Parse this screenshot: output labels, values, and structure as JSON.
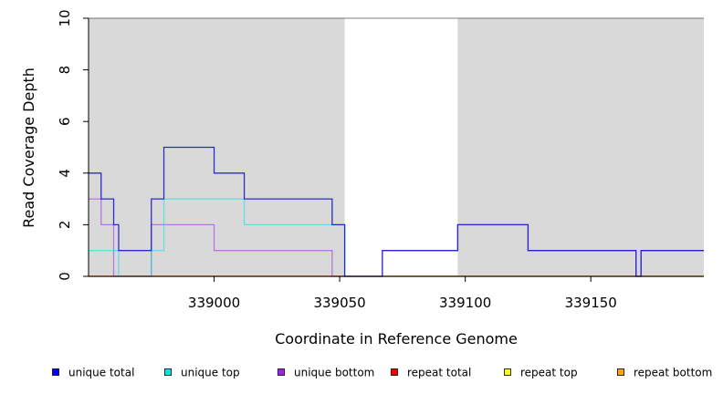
{
  "chart_data": {
    "type": "line",
    "xlabel": "Coordinate in Reference Genome",
    "ylabel": "Read Coverage Depth",
    "xlim": [
      338950,
      339195
    ],
    "ylim": [
      0,
      10
    ],
    "x_ticks": [
      339000,
      339050,
      339100,
      339150
    ],
    "x_tick_labels": [
      "339000",
      "339050",
      "339100",
      "339150"
    ],
    "y_ticks": [
      0,
      2,
      4,
      6,
      8,
      10
    ],
    "y_tick_labels": [
      "0",
      "2",
      "4",
      "6",
      "8",
      "10"
    ],
    "grid": false,
    "shaded_regions": [
      {
        "start": 338950,
        "end": 339052
      },
      {
        "start": 339097,
        "end": 339195
      }
    ],
    "series": [
      {
        "name": "unique total",
        "color": "#0000ff",
        "x": [
          338950,
          338955,
          338960,
          338962,
          338975,
          338980,
          339000,
          339012,
          339047,
          339052,
          339067,
          339097,
          339125,
          339168,
          339170,
          339195
        ],
        "y": [
          4,
          3,
          2,
          1,
          3,
          5,
          4,
          3,
          2,
          0,
          1,
          2,
          1,
          0,
          1,
          1
        ]
      },
      {
        "name": "unique top",
        "color": "#00e5e5",
        "x": [
          338950,
          338962,
          338975,
          338980,
          339012,
          339052,
          339195
        ],
        "y": [
          1,
          0,
          1,
          3,
          2,
          0,
          0
        ]
      },
      {
        "name": "unique bottom",
        "color": "#a020f0",
        "x": [
          338950,
          338955,
          338960,
          338975,
          339000,
          339047,
          339052,
          339067,
          339097,
          339125,
          339168,
          339170,
          339195
        ],
        "y": [
          3,
          2,
          0,
          2,
          1,
          0,
          0,
          1,
          2,
          1,
          0,
          1,
          1
        ]
      },
      {
        "name": "repeat total",
        "color": "#ff0000",
        "x": [
          338950,
          339195
        ],
        "y": [
          0,
          0
        ]
      },
      {
        "name": "repeat top",
        "color": "#ffff00",
        "x": [
          338950,
          339195
        ],
        "y": [
          0,
          0
        ]
      },
      {
        "name": "repeat bottom",
        "color": "#ffa500",
        "x": [
          338950,
          339195
        ],
        "y": [
          0,
          0
        ]
      }
    ],
    "legend_placement": "bottom"
  }
}
